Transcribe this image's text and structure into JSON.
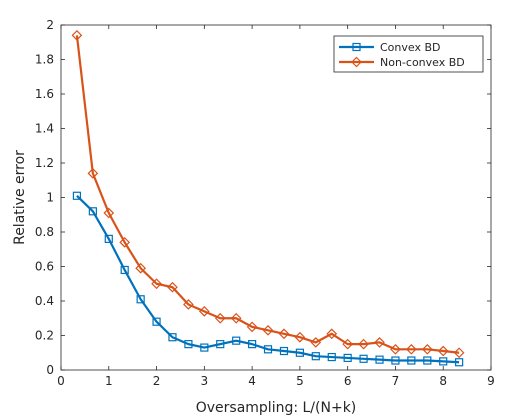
{
  "chart_data": {
    "type": "line",
    "xlabel": "Oversampling: L/(N+k)",
    "ylabel": "Relative error",
    "xlim": [
      0,
      9
    ],
    "ylim": [
      0,
      2
    ],
    "x_ticks": [
      0,
      1,
      2,
      3,
      4,
      5,
      6,
      7,
      8,
      9
    ],
    "y_ticks": [
      0,
      0.2,
      0.4,
      0.6,
      0.8,
      1,
      1.2,
      1.4,
      1.6,
      1.8,
      2
    ],
    "x_tick_labels": [
      "0",
      "1",
      "2",
      "3",
      "4",
      "5",
      "6",
      "7",
      "8",
      "9"
    ],
    "y_tick_labels": [
      "0",
      "0.2",
      "0.4",
      "0.6",
      "0.8",
      "1",
      "1.2",
      "1.4",
      "1.6",
      "1.8",
      "2"
    ],
    "grid": false,
    "legend_position": "top-right",
    "series": [
      {
        "name": "Convex BD",
        "color": "#0072BD",
        "marker": "square",
        "x": [
          0.333,
          0.667,
          1.0,
          1.333,
          1.667,
          2.0,
          2.333,
          2.667,
          3.0,
          3.333,
          3.667,
          4.0,
          4.333,
          4.667,
          5.0,
          5.333,
          5.667,
          6.0,
          6.333,
          6.667,
          7.0,
          7.333,
          7.667,
          8.0,
          8.333
        ],
        "values": [
          1.01,
          0.92,
          0.76,
          0.58,
          0.41,
          0.28,
          0.19,
          0.15,
          0.13,
          0.15,
          0.17,
          0.15,
          0.12,
          0.11,
          0.1,
          0.08,
          0.075,
          0.07,
          0.065,
          0.06,
          0.055,
          0.055,
          0.055,
          0.05,
          0.045
        ]
      },
      {
        "name": "Non-convex BD",
        "color": "#D95319",
        "marker": "diamond",
        "x": [
          0.333,
          0.667,
          1.0,
          1.333,
          1.667,
          2.0,
          2.333,
          2.667,
          3.0,
          3.333,
          3.667,
          4.0,
          4.333,
          4.667,
          5.0,
          5.333,
          5.667,
          6.0,
          6.333,
          6.667,
          7.0,
          7.333,
          7.667,
          8.0,
          8.333
        ],
        "values": [
          1.94,
          1.14,
          0.91,
          0.74,
          0.59,
          0.5,
          0.48,
          0.38,
          0.34,
          0.3,
          0.3,
          0.25,
          0.23,
          0.21,
          0.19,
          0.16,
          0.21,
          0.15,
          0.15,
          0.16,
          0.12,
          0.12,
          0.12,
          0.11,
          0.1
        ]
      }
    ]
  }
}
